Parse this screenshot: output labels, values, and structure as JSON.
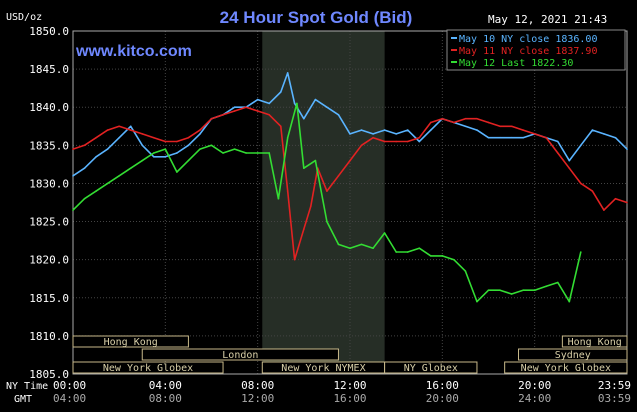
{
  "chart_data": {
    "type": "line",
    "title": "24 Hour Spot Gold (Bid)",
    "watermark": "www.kitco.com",
    "timestamp": "May 12, 2021 21:43",
    "unit_label": "USD/oz",
    "ylim": [
      1805,
      1850
    ],
    "y_ticks": [
      "1850.0",
      "1845.0",
      "1840.0",
      "1835.0",
      "1830.0",
      "1825.0",
      "1820.0",
      "1815.0",
      "1810.0",
      "1805.0"
    ],
    "x_range_hours": [
      0,
      24
    ],
    "x_ticks_ny": [
      "00:00",
      "04:00",
      "08:00",
      "12:00",
      "16:00",
      "20:00",
      "23:59"
    ],
    "x_ticks_gmt": [
      "04:00",
      "08:00",
      "12:00",
      "16:00",
      "20:00",
      "24:00",
      "03:59"
    ],
    "x_row_labels": {
      "ny": "NY Time",
      "gmt": "GMT"
    },
    "legend_position": "top-right",
    "series": [
      {
        "name": "May 10 NY close 1836.00",
        "color": "#5ab4ff",
        "x": [
          0,
          0.5,
          1,
          1.5,
          2,
          2.5,
          3,
          3.5,
          4,
          4.5,
          5,
          5.5,
          6,
          6.5,
          7,
          7.5,
          8,
          8.5,
          9,
          9.3,
          9.6,
          10,
          10.5,
          11,
          11.5,
          12,
          12.5,
          13,
          13.5,
          14,
          14.5,
          15,
          15.5,
          16,
          16.5,
          17,
          17.5,
          18,
          18.5,
          19,
          19.5,
          20,
          20.5,
          21,
          21.5,
          22,
          22.5,
          23,
          23.5,
          24
        ],
        "y": [
          1831,
          1832,
          1833.5,
          1834.5,
          1836,
          1837.5,
          1835,
          1833.5,
          1833.5,
          1834,
          1835,
          1836.5,
          1838.5,
          1839,
          1840,
          1840,
          1841,
          1840.5,
          1842,
          1844.5,
          1840.5,
          1838.5,
          1841,
          1840,
          1839,
          1836.5,
          1837,
          1836.5,
          1837,
          1836.5,
          1837,
          1835.5,
          1837,
          1838.5,
          1838,
          1837.5,
          1837,
          1836,
          1836,
          1836,
          1836,
          1836.5,
          1836,
          1835.5,
          1833,
          1835,
          1837,
          1836.5,
          1836,
          1834.5
        ]
      },
      {
        "name": "May 11 NY close 1837.90",
        "color": "#e22222",
        "x": [
          0,
          0.5,
          1,
          1.5,
          2,
          2.5,
          3,
          3.5,
          4,
          4.5,
          5,
          5.5,
          6,
          6.5,
          7,
          7.5,
          8,
          8.5,
          9,
          9.3,
          9.6,
          10,
          10.3,
          10.6,
          11,
          11.5,
          12,
          12.5,
          13,
          13.5,
          14,
          14.5,
          15,
          15.5,
          16,
          16.5,
          17,
          17.5,
          18,
          18.5,
          19,
          19.5,
          20,
          20.5,
          21,
          21.5,
          22,
          22.5,
          23,
          23.5,
          24
        ],
        "y": [
          1834.5,
          1835,
          1836,
          1837,
          1837.5,
          1837,
          1836.5,
          1836,
          1835.5,
          1835.5,
          1836,
          1837,
          1838.5,
          1839,
          1839.5,
          1840,
          1839.5,
          1839,
          1837.5,
          1829,
          1820,
          1824,
          1827,
          1832,
          1829,
          1831,
          1833,
          1835,
          1836,
          1835.5,
          1835.5,
          1835.5,
          1836,
          1838,
          1838.5,
          1838,
          1838.5,
          1838.5,
          1838,
          1837.5,
          1837.5,
          1837,
          1836.5,
          1836,
          1834,
          1832,
          1830,
          1829,
          1826.5,
          1828,
          1827.5
        ]
      },
      {
        "name": "May 12 Last 1822.30",
        "color": "#33dd33",
        "x": [
          0,
          0.5,
          1,
          1.5,
          2,
          2.5,
          3,
          3.5,
          4,
          4.5,
          5,
          5.5,
          6,
          6.5,
          7,
          7.5,
          8,
          8.5,
          8.9,
          9.3,
          9.7,
          10,
          10.5,
          11,
          11.5,
          12,
          12.5,
          13,
          13.5,
          14,
          14.5,
          15,
          15.5,
          16,
          16.5,
          17,
          17.5,
          18,
          18.5,
          19,
          19.5,
          20,
          20.5,
          21,
          21.5,
          22
        ],
        "y": [
          1826.5,
          1828,
          1829,
          1830,
          1831,
          1832,
          1833,
          1834,
          1834.5,
          1831.5,
          1833,
          1834.5,
          1835,
          1834,
          1834.5,
          1834,
          1834,
          1834,
          1828,
          1836,
          1840.5,
          1832,
          1833,
          1825,
          1822,
          1821.5,
          1822,
          1821.5,
          1823.5,
          1821,
          1821,
          1821.5,
          1820.5,
          1820.5,
          1820,
          1818.5,
          1814.5,
          1816,
          1816,
          1815.5,
          1816,
          1816,
          1816.5,
          1817,
          1814.5,
          1821
        ]
      }
    ],
    "session_bars": [
      {
        "label": "Hong Kong",
        "start": 0,
        "end": 5,
        "row": 1
      },
      {
        "label": "Hong Kong",
        "start": 21.2,
        "end": 24,
        "row": 1
      },
      {
        "label": "Sydney",
        "start": 19.3,
        "end": 24,
        "row": 2
      },
      {
        "label": "London",
        "start": 3,
        "end": 11.5,
        "row": 2
      },
      {
        "label": "New York Globex",
        "start": 0,
        "end": 6.5,
        "row": 3
      },
      {
        "label": "New York NYMEX",
        "start": 8.2,
        "end": 13.5,
        "row": 3
      },
      {
        "label": "NY Globex",
        "start": 13.5,
        "end": 17.5,
        "row": 3
      },
      {
        "label": "New York Globex",
        "start": 18.7,
        "end": 24,
        "row": 3
      }
    ],
    "highlight_range": [
      8.2,
      13.5
    ]
  }
}
